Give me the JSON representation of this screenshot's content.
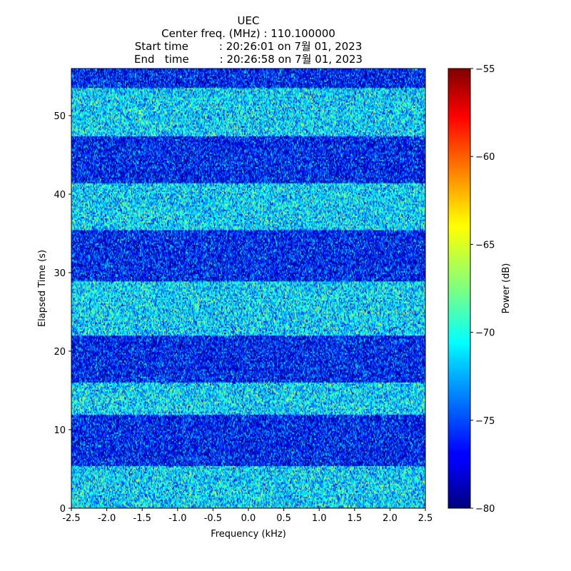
{
  "chart_data": {
    "type": "heatmap",
    "title_lines": [
      "UEC",
      "Center freq. (MHz) : 110.100000",
      "Start time         : 20:26:01 on 7월 01, 2023",
      "End   time         : 20:26:58 on 7월 01, 2023"
    ],
    "xlabel": "Frequency (kHz)",
    "ylabel": "Elapsed Time (s)",
    "xlim": [
      -2.5,
      2.5
    ],
    "ylim": [
      0,
      56
    ],
    "x_ticks": [
      -2.5,
      -2.0,
      -1.5,
      -1.0,
      -0.5,
      0.0,
      0.5,
      1.0,
      1.5,
      2.0,
      2.5
    ],
    "x_tick_labels": [
      "-2.5",
      "-2.0",
      "-1.5",
      "-1.0",
      "-0.5",
      "0.0",
      "0.5",
      "1.0",
      "1.5",
      "2.0",
      "2.5"
    ],
    "y_ticks": [
      0,
      10,
      20,
      30,
      40,
      50
    ],
    "y_tick_labels": [
      "0",
      "10",
      "20",
      "30",
      "40",
      "50"
    ],
    "colorbar": {
      "label": "Power (dB)",
      "colormap": "jet",
      "range": [
        -80,
        -55
      ],
      "ticks": [
        -55,
        -60,
        -65,
        -70,
        -75,
        -80
      ],
      "tick_labels": [
        "−55",
        "−60",
        "−65",
        "−70",
        "−75",
        "−80"
      ]
    },
    "time_bands": [
      {
        "t_start": 0,
        "t_end": 5.5,
        "level": "high",
        "mean_db": -71.5
      },
      {
        "t_start": 5.5,
        "t_end": 12,
        "level": "low",
        "mean_db": -76.5
      },
      {
        "t_start": 12,
        "t_end": 16,
        "level": "high",
        "mean_db": -71.5
      },
      {
        "t_start": 16,
        "t_end": 22,
        "level": "low",
        "mean_db": -76.5
      },
      {
        "t_start": 22,
        "t_end": 29,
        "level": "high",
        "mean_db": -71.5
      },
      {
        "t_start": 29,
        "t_end": 35.5,
        "level": "low",
        "mean_db": -76.5
      },
      {
        "t_start": 35.5,
        "t_end": 41.5,
        "level": "high",
        "mean_db": -71.5
      },
      {
        "t_start": 41.5,
        "t_end": 47.5,
        "level": "low",
        "mean_db": -76.5
      },
      {
        "t_start": 47.5,
        "t_end": 53.5,
        "level": "high",
        "mean_db": -71.5
      },
      {
        "t_start": 53.5,
        "t_end": 56,
        "level": "low",
        "mean_db": -76.5
      }
    ]
  }
}
